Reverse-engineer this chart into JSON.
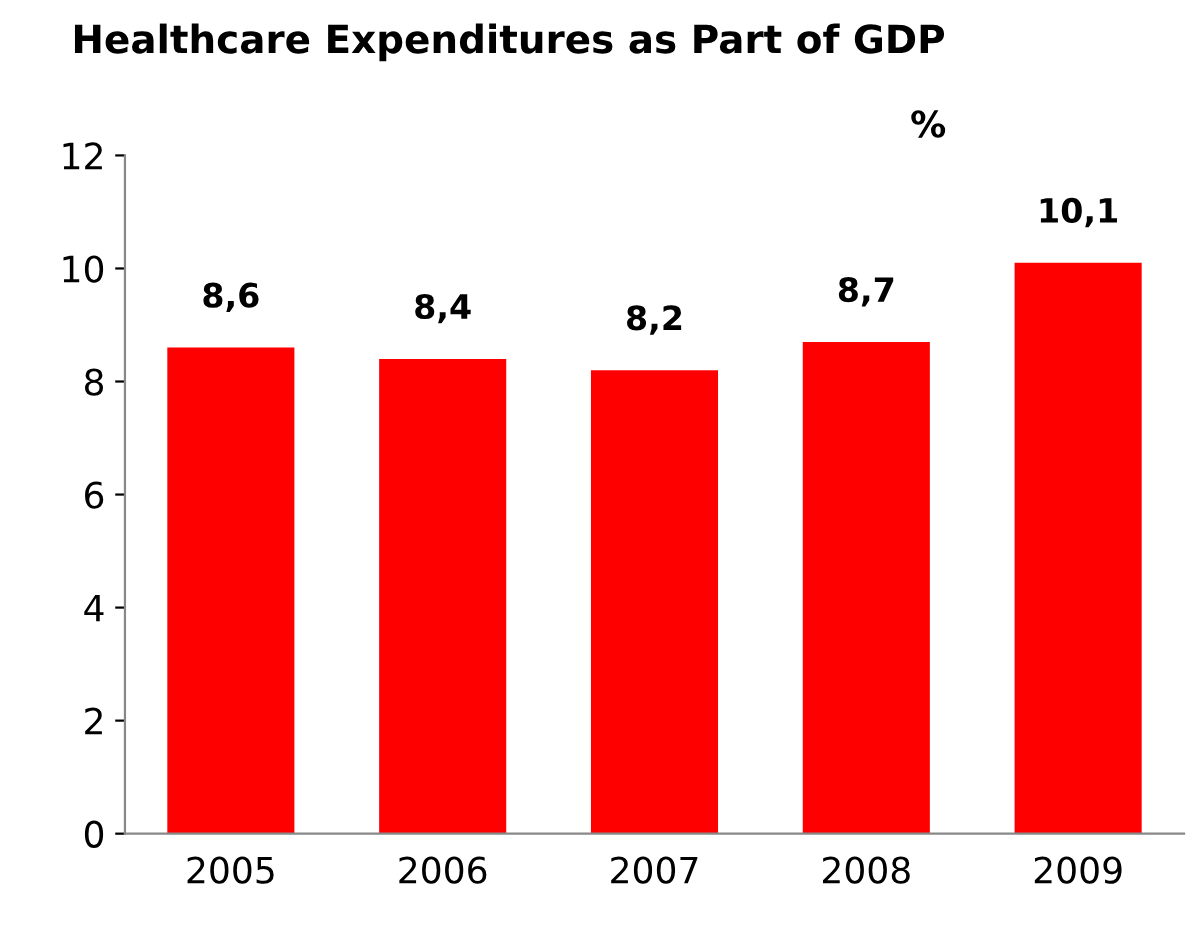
{
  "chart_data": {
    "type": "bar",
    "title": "Healthcare Expenditures as Part of GDP",
    "ylabel": "%",
    "categories": [
      "2005",
      "2006",
      "2007",
      "2008",
      "2009"
    ],
    "values": [
      8.6,
      8.4,
      8.2,
      8.7,
      10.1
    ],
    "value_labels": [
      "8,6",
      "8,4",
      "8,2",
      "8,7",
      "10,1"
    ],
    "color": "#ff0000",
    "ylim": [
      0,
      12
    ],
    "yticks": [
      0,
      2,
      4,
      6,
      8,
      10,
      12
    ],
    "grid": false,
    "legend": false
  }
}
